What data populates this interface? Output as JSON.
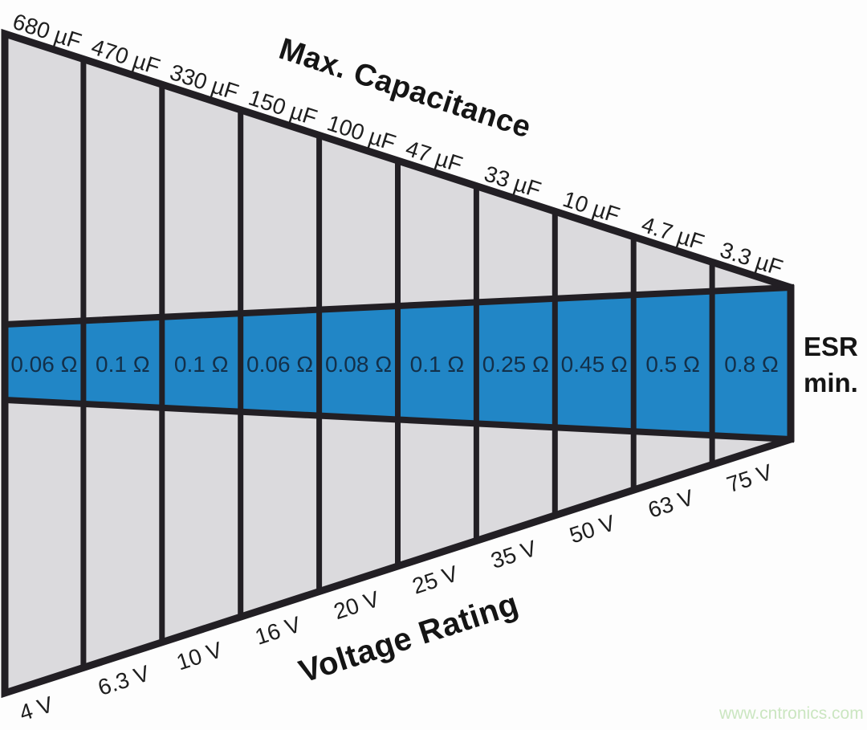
{
  "diagram": {
    "top_title": "Max. Capacitance",
    "bottom_title": "Voltage Rating",
    "right_title_line1": "ESR",
    "right_title_line2": "min.",
    "columns": [
      {
        "capacitance": "680 µF",
        "esr": "0.06 Ω",
        "voltage": "4 V"
      },
      {
        "capacitance": "470 µF",
        "esr": "0.1 Ω",
        "voltage": "6.3 V"
      },
      {
        "capacitance": "330 µF",
        "esr": "0.1 Ω",
        "voltage": "10 V"
      },
      {
        "capacitance": "150 µF",
        "esr": "0.06 Ω",
        "voltage": "16 V"
      },
      {
        "capacitance": "100 µF",
        "esr": "0.08 Ω",
        "voltage": "20 V"
      },
      {
        "capacitance": "47 µF",
        "esr": "0.1 Ω",
        "voltage": "25 V"
      },
      {
        "capacitance": "33 µF",
        "esr": "0.25 Ω",
        "voltage": "35 V"
      },
      {
        "capacitance": "10 µF",
        "esr": "0.45 Ω",
        "voltage": "50 V"
      },
      {
        "capacitance": "4.7 µF",
        "esr": "0.5 Ω",
        "voltage": "63 V"
      },
      {
        "capacitance": "3.3 µF",
        "esr": "0.8 Ω",
        "voltage": "75 V"
      }
    ],
    "colors": {
      "cell_fill": "#dbdadd",
      "band_fill": "#2186c6",
      "line": "#221f24",
      "label_text": "#1e1e1e",
      "esr_text": "#13304a",
      "title_text": "#151515"
    }
  },
  "watermark": {
    "text": "www.cntronics.com",
    "color": "#cbe6c1"
  }
}
